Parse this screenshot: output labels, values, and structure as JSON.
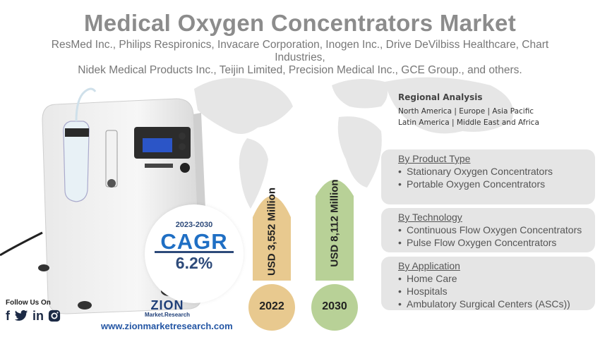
{
  "header": {
    "title": "Medical Oxygen Concentrators Market",
    "companies_line1": "ResMed Inc., Philips Respironics, Invacare Corporation, Inogen Inc., Drive DeVilbiss Healthcare, Chart Industries,",
    "companies_line2": "Nidek Medical Products Inc., Teijin Limited, Precision Medical Inc., GCE Group., and others."
  },
  "region": {
    "heading": "Regional Analysis",
    "line1": "North America | Europe | Asia Pacific",
    "line2": "Latin America | Middle East and Africa"
  },
  "cagr": {
    "years": "2023-2030",
    "label": "CAGR",
    "value": "6.2%"
  },
  "market": {
    "y2022": {
      "label": "USD 3,552 Million",
      "year": "2022",
      "color": "#e8c98f"
    },
    "y2030": {
      "label": "USD 8,112 Million",
      "year": "2030",
      "color": "#b8d197"
    }
  },
  "segments": {
    "product": {
      "heading": "By Product Type",
      "items": [
        "Stationary Oxygen Concentrators",
        "Portable Oxygen Concentrators"
      ]
    },
    "technology": {
      "heading": "By Technology",
      "items": [
        "Continuous Flow Oxygen Concentrators",
        "Pulse Flow Oxygen Concentrators"
      ]
    },
    "application": {
      "heading": "By Application",
      "items": [
        "Home Care",
        "Hospitals",
        "Ambulatory Surgical Centers (ASCs))"
      ]
    }
  },
  "footer": {
    "follow": "Follow Us On",
    "social_icons": [
      "facebook-icon",
      "twitter-icon",
      "linkedin-icon",
      "instagram-icon"
    ],
    "logo_main": "ZION",
    "logo_sub": "Market.Research",
    "url": "www.zionmarketresearch.com"
  }
}
